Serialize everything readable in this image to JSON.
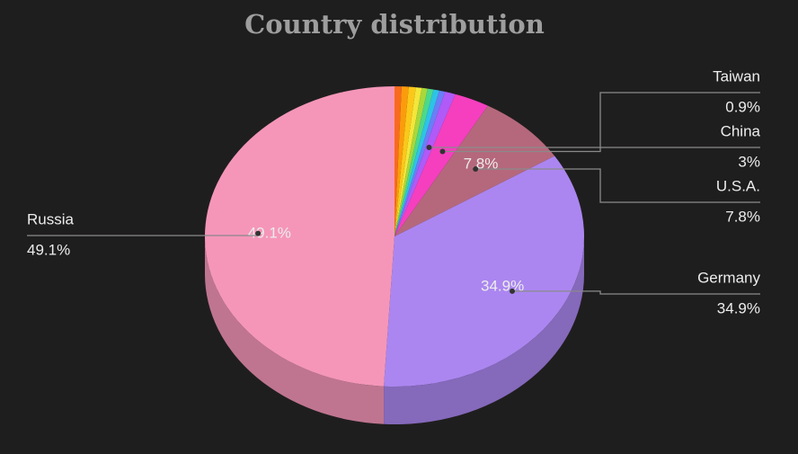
{
  "chart_data": {
    "type": "pie",
    "title": "Country distribution",
    "categories": [
      null,
      null,
      null,
      null,
      null,
      null,
      null,
      null,
      "Taiwan",
      "China",
      "U.S.A.",
      "Germany",
      "Russia"
    ],
    "values": [
      0.6,
      0.6,
      0.6,
      0.5,
      0.5,
      0.5,
      0.5,
      0.5,
      0.9,
      3,
      7.8,
      34.9,
      49.1
    ],
    "value_labels": [
      null,
      null,
      null,
      null,
      null,
      null,
      null,
      null,
      "0.9%",
      "3%",
      "7.8%",
      "34.9%",
      "49.1%"
    ],
    "colors": [
      "#e8453c",
      "#f96a1e",
      "#fb9c0c",
      "#fbc81a",
      "#f4e63a",
      "#a8d83a",
      "#4cd98a",
      "#2cc4e6",
      "#6a7ef8",
      "#b05af8",
      "#f53fbf",
      "#b5687c",
      "#ab86f0",
      "#f596b9"
    ]
  }
}
